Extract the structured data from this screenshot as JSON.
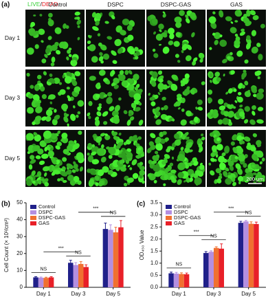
{
  "panel_a": {
    "panel_label": "(a)",
    "live_label": "LIVE",
    "separator": "/",
    "dead_label": "DEAD",
    "columns": [
      "Control",
      "DSPC",
      "DSPC-GAS",
      "GAS"
    ],
    "rows": [
      "Day 1",
      "Day 3",
      "Day 5"
    ],
    "scale_bar": "200 μm"
  },
  "chart_data": [
    {
      "type": "bar",
      "panel_label": "(b)",
      "y_label": "Cell Count (× 10³/cm²)",
      "categories": [
        "Day 1",
        "Day 3",
        "Day 5"
      ],
      "ylim": [
        0,
        50
      ],
      "yticks": [
        0,
        10,
        20,
        30,
        40,
        50
      ],
      "legend": "top-left",
      "series": [
        {
          "name": "Control",
          "color": "#20208a",
          "values": [
            5.9,
            14.5,
            34.5
          ],
          "errors": [
            0.4,
            1.5,
            3.5
          ]
        },
        {
          "name": "DSPC",
          "color": "#b48fe0",
          "values": [
            5.7,
            13.2,
            34.0
          ],
          "errors": [
            0.4,
            1.4,
            3.0
          ]
        },
        {
          "name": "DSPC-GAS",
          "color": "#f07030",
          "values": [
            5.6,
            13.8,
            32.5
          ],
          "errors": [
            0.4,
            1.4,
            3.0
          ]
        },
        {
          "name": "GAS",
          "color": "#e82028",
          "values": [
            5.9,
            12.0,
            35.5
          ],
          "errors": [
            0.4,
            1.3,
            4.0
          ]
        }
      ],
      "annotations": [
        "NS",
        "***",
        "NS",
        "***",
        "NS"
      ]
    },
    {
      "type": "bar",
      "panel_label": "(c)",
      "y_label": "OD₄₅₀ Value",
      "categories": [
        "Day 1",
        "Day 3",
        "Day 5"
      ],
      "ylim": [
        0,
        3.5
      ],
      "yticks": [
        {
          "value": 0,
          "label": "0.0"
        },
        0.5,
        {
          "value": 1,
          "label": "1.0"
        },
        1.5,
        {
          "value": 2,
          "label": "2.0"
        },
        2.5,
        {
          "value": 3,
          "label": "3.0"
        },
        3.5
      ],
      "legend": "top-left",
      "series": [
        {
          "name": "Control",
          "color": "#20208a",
          "values": [
            0.58,
            1.42,
            2.67
          ],
          "errors": [
            0.05,
            0.06,
            0.06
          ]
        },
        {
          "name": "DSPC",
          "color": "#b48fe0",
          "values": [
            0.57,
            1.47,
            2.73
          ],
          "errors": [
            0.05,
            0.04,
            0.04
          ]
        },
        {
          "name": "DSPC-GAS",
          "color": "#f07030",
          "values": [
            0.55,
            1.63,
            2.63
          ],
          "errors": [
            0.05,
            0.05,
            0.08
          ]
        },
        {
          "name": "GAS",
          "color": "#e82028",
          "values": [
            0.54,
            1.6,
            2.62
          ],
          "errors": [
            0.05,
            0.2,
            0.08
          ]
        }
      ],
      "annotations": [
        "NS",
        "***",
        "NS",
        "***",
        "NS"
      ]
    }
  ]
}
